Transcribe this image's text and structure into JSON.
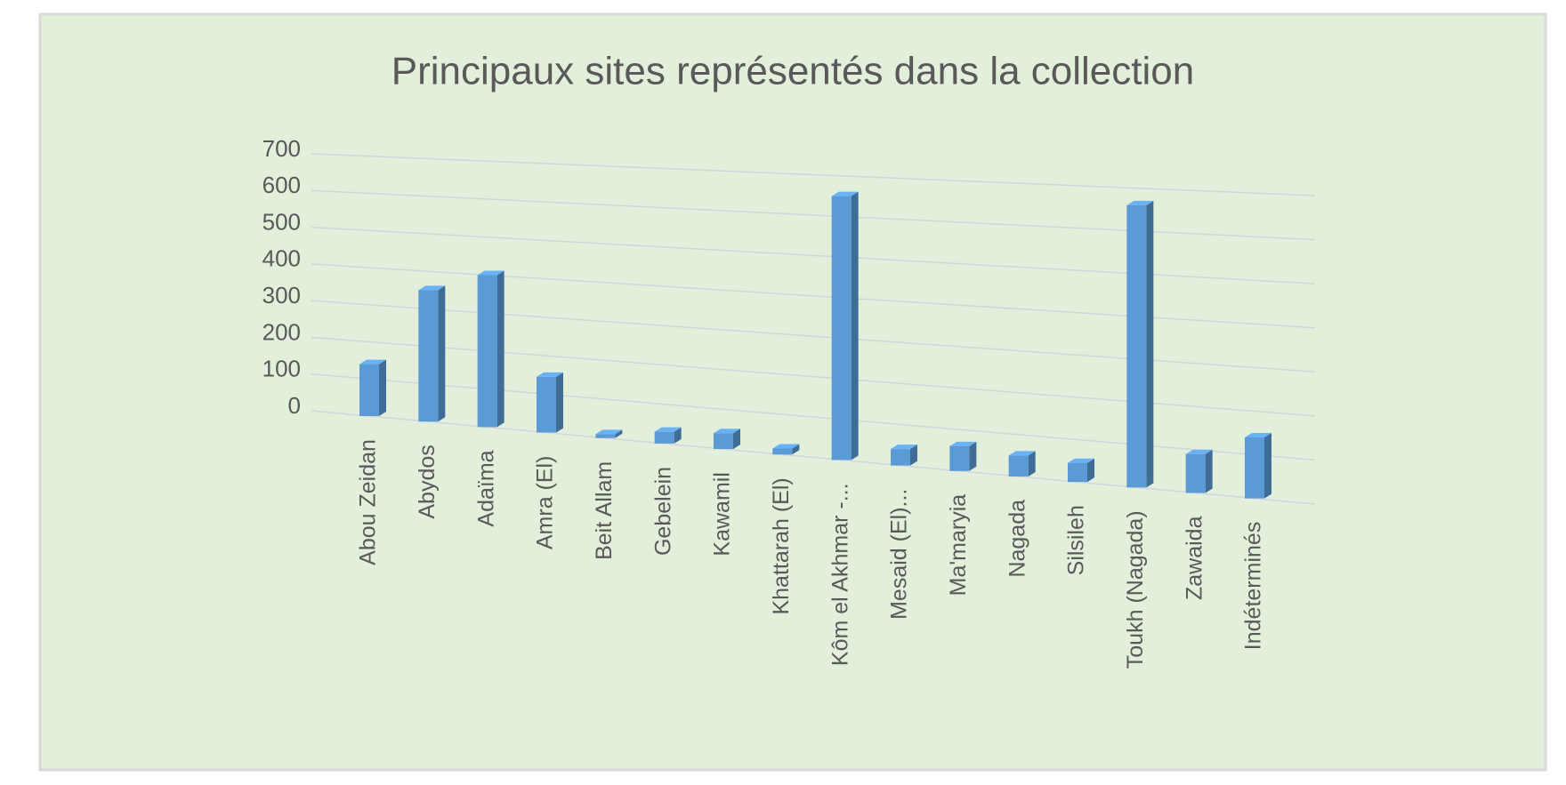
{
  "chart_data": {
    "type": "bar3d",
    "title": "Principaux sites représentés dans la collection",
    "categories": [
      "Abou Zeidan",
      "Abydos",
      "Adaïma",
      "Amra (El)",
      "Beit Allam",
      "Gebelein",
      "Kawamil",
      "Khattarah (El)",
      "Kôm el Akhmar -...",
      "Mesaid (El)...",
      "Ma'maryia",
      "Nagada",
      "Silsileh",
      "Toukh (Nagada)",
      "Zawaida",
      "Indéterminés"
    ],
    "values": [
      140,
      350,
      400,
      145,
      10,
      30,
      40,
      15,
      650,
      40,
      60,
      50,
      45,
      660,
      90,
      140
    ],
    "color": "#5b9bd5",
    "ylim": [
      0,
      700
    ],
    "yticks": [
      0,
      100,
      200,
      300,
      400,
      500,
      600,
      700
    ],
    "grid": true
  }
}
